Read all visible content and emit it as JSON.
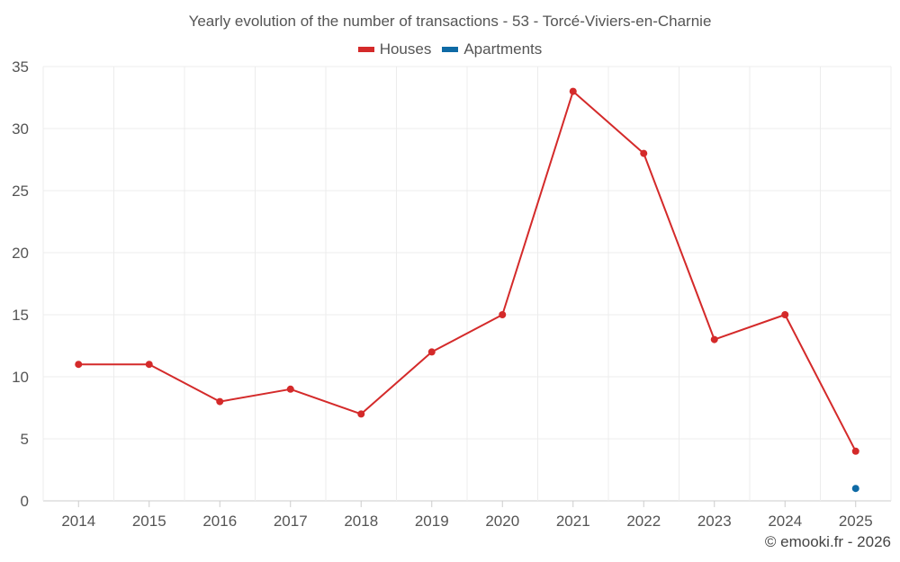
{
  "chart_data": {
    "type": "line",
    "title": "Yearly evolution of the number of transactions - 53 - Torcé-Viviers-en-Charnie",
    "categories": [
      "2014",
      "2015",
      "2016",
      "2017",
      "2018",
      "2019",
      "2020",
      "2021",
      "2022",
      "2023",
      "2024",
      "2025"
    ],
    "series": [
      {
        "name": "Houses",
        "color": "#d42a2a",
        "values": [
          11,
          11,
          8,
          9,
          7,
          12,
          15,
          33,
          28,
          13,
          15,
          4
        ]
      },
      {
        "name": "Apartments",
        "color": "#0e6aa5",
        "values": [
          null,
          null,
          null,
          null,
          null,
          null,
          null,
          null,
          null,
          null,
          null,
          1
        ]
      }
    ],
    "ylim": [
      0,
      35
    ],
    "yticks": [
      0,
      5,
      10,
      15,
      20,
      25,
      30,
      35
    ],
    "xlabel": "",
    "ylabel": "",
    "grid": true,
    "legend": "top-center"
  },
  "footer": "© emooki.fr - 2026"
}
